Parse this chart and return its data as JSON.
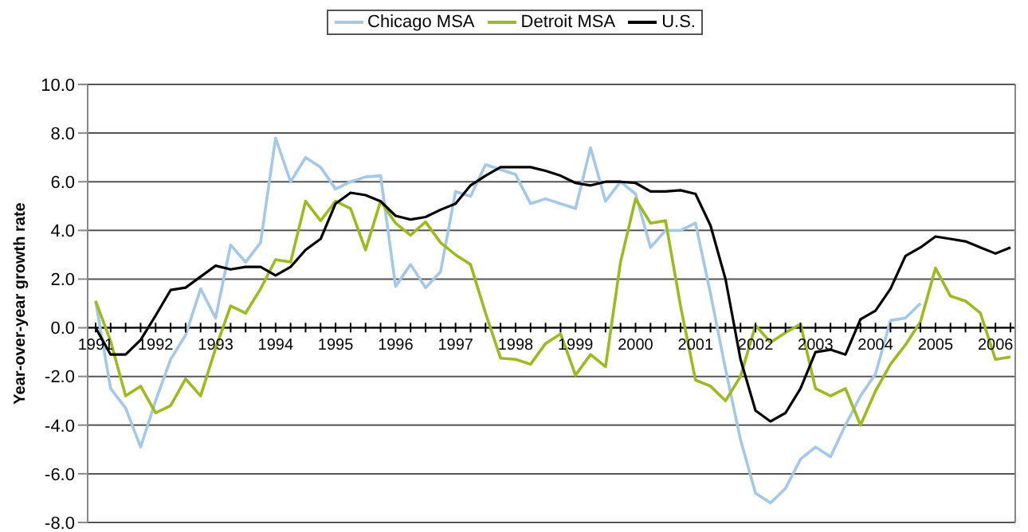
{
  "chart_data": {
    "type": "line",
    "ylabel": "Year-over-year growth rate",
    "categories": [
      "1991",
      null,
      null,
      null,
      "1992",
      null,
      null,
      null,
      "1993",
      null,
      null,
      null,
      "1994",
      null,
      null,
      null,
      "1995",
      null,
      null,
      null,
      "1996",
      null,
      null,
      null,
      "1997",
      null,
      null,
      null,
      "1998",
      null,
      null,
      null,
      "1999",
      null,
      null,
      null,
      "2000",
      null,
      null,
      null,
      "2001",
      null,
      null,
      null,
      "2002",
      null,
      null,
      null,
      "2003",
      null,
      null,
      null,
      "2004",
      null,
      null,
      null,
      "2005",
      null,
      null,
      null,
      "2006",
      null
    ],
    "series": [
      {
        "name": "Chicago MSA",
        "color": "#a3c8e8",
        "values": [
          1.1,
          -2.5,
          -3.3,
          -4.9,
          -3.0,
          -1.3,
          -0.3,
          1.6,
          0.4,
          3.4,
          2.7,
          3.5,
          7.8,
          6.0,
          7.0,
          6.6,
          5.7,
          6.0,
          6.2,
          6.25,
          1.7,
          2.6,
          1.65,
          2.3,
          5.6,
          5.4,
          6.7,
          6.5,
          6.3,
          5.1,
          5.3,
          5.1,
          4.9,
          7.4,
          5.2,
          6.0,
          5.5,
          3.3,
          4.0,
          4.0,
          4.3,
          1.4,
          -1.7,
          -4.6,
          -6.8,
          -7.2,
          -6.6,
          -5.4,
          -4.9,
          -5.3,
          -4.0,
          -2.8,
          -1.9,
          0.3,
          0.4,
          1.0,
          null,
          null,
          null,
          null,
          null,
          null
        ]
      },
      {
        "name": "Detroit MSA",
        "color": "#9bbb1e",
        "values": [
          1.1,
          -0.55,
          -2.8,
          -2.4,
          -3.5,
          -3.2,
          -2.1,
          -2.8,
          -0.85,
          0.9,
          0.6,
          1.6,
          2.8,
          2.7,
          5.2,
          4.4,
          5.2,
          4.9,
          3.2,
          5.2,
          4.3,
          3.8,
          4.35,
          3.5,
          3.0,
          2.6,
          0.6,
          -1.25,
          -1.3,
          -1.5,
          -0.65,
          -0.25,
          -1.95,
          -1.1,
          -1.6,
          2.7,
          5.3,
          4.3,
          4.4,
          0.9,
          -2.15,
          -2.4,
          -3.0,
          -2.0,
          0.1,
          -0.6,
          -0.2,
          0.15,
          -2.5,
          -2.8,
          -2.5,
          -4.0,
          -2.6,
          -1.5,
          -0.7,
          0.25,
          2.45,
          1.3,
          1.1,
          0.6,
          -1.3,
          -1.2
        ]
      },
      {
        "name": "U.S.",
        "color": "#000000",
        "values": [
          0,
          -1.1,
          -1.1,
          -0.5,
          0.5,
          1.55,
          1.65,
          2.1,
          2.55,
          2.4,
          2.5,
          2.5,
          2.15,
          2.5,
          3.2,
          3.65,
          5.1,
          5.55,
          5.45,
          5.2,
          4.6,
          4.45,
          4.55,
          4.85,
          5.1,
          5.85,
          6.25,
          6.6,
          6.6,
          6.6,
          6.45,
          6.25,
          5.95,
          5.85,
          6.0,
          6.0,
          5.95,
          5.6,
          5.6,
          5.65,
          5.5,
          4.2,
          2.0,
          -1.3,
          -3.4,
          -3.85,
          -3.5,
          -2.5,
          -1.0,
          -0.9,
          -1.1,
          0.35,
          0.7,
          1.6,
          2.95,
          3.3,
          3.75,
          3.65,
          3.55,
          3.3,
          3.05,
          3.3
        ]
      }
    ],
    "ylim": [
      -8,
      10
    ],
    "yticks": [
      {
        "value": -8,
        "label": "-8.0"
      },
      {
        "value": -6,
        "label": "-6.0"
      },
      {
        "value": -4,
        "label": "-4.0"
      },
      {
        "value": -2,
        "label": "-2.0"
      },
      {
        "value": 0,
        "label": "0.0"
      },
      {
        "value": 2,
        "label": "2.0"
      },
      {
        "value": 4,
        "label": "4.0"
      },
      {
        "value": 6,
        "label": "6.0"
      },
      {
        "value": 8,
        "label": "8.0"
      },
      {
        "value": 10,
        "label": "10.0"
      }
    ],
    "grid": "y",
    "legend": "top",
    "marker": "none",
    "line_style": "solid"
  }
}
